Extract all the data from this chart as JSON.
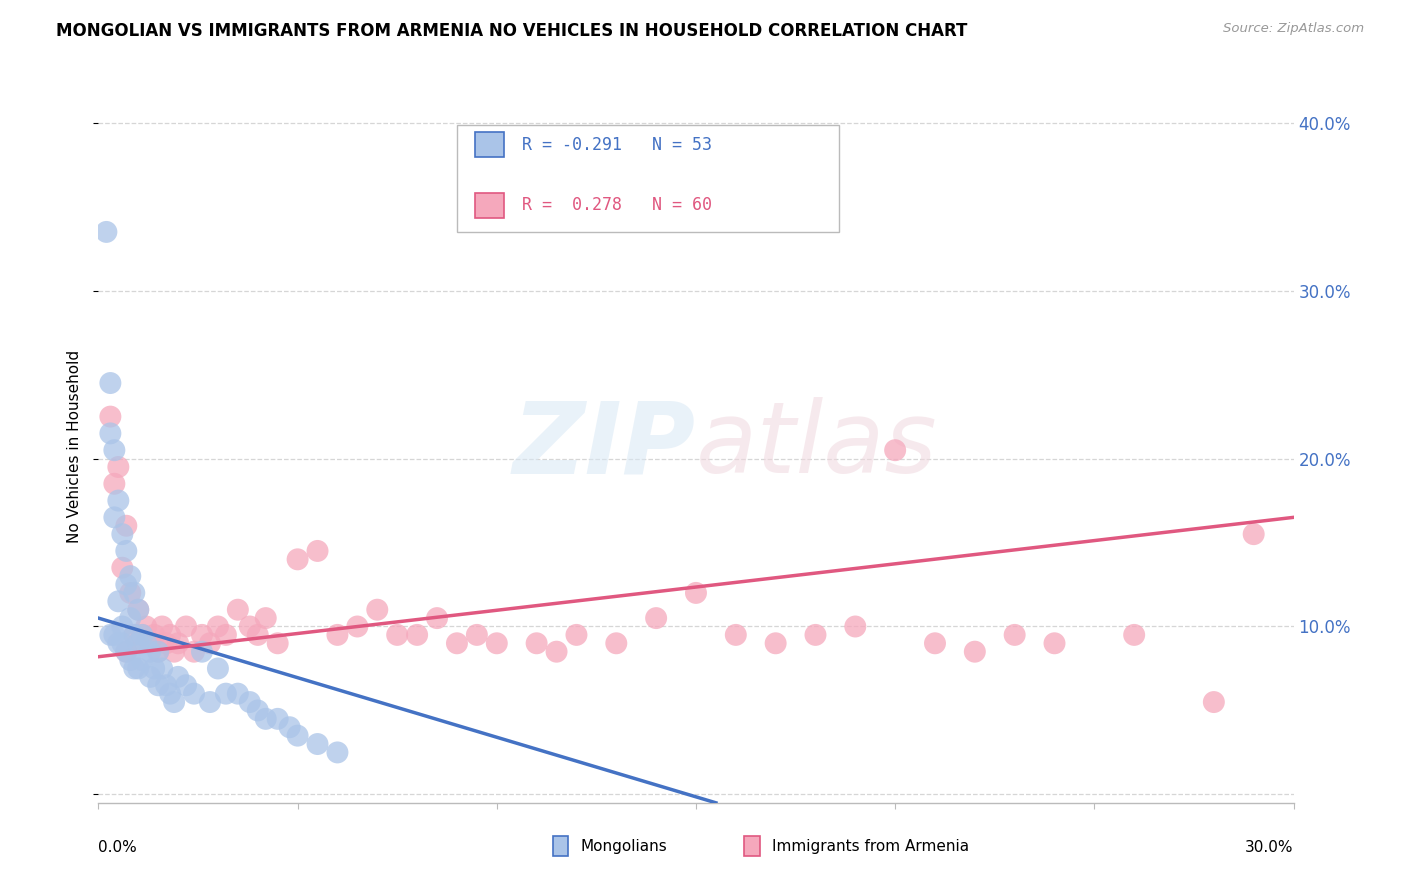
{
  "title": "MONGOLIAN VS IMMIGRANTS FROM ARMENIA NO VEHICLES IN HOUSEHOLD CORRELATION CHART",
  "source": "Source: ZipAtlas.com",
  "ylabel": "No Vehicles in Household",
  "mongolian_color": "#aac4e8",
  "armenia_color": "#f5a8bc",
  "mongolian_line_color": "#4472c4",
  "armenia_line_color": "#e05880",
  "xmin": 0.0,
  "xmax": 0.3,
  "ymin": -0.005,
  "ymax": 0.42,
  "yticks": [
    0.0,
    0.1,
    0.2,
    0.3,
    0.4
  ],
  "yticklabels": [
    "",
    "10.0%",
    "20.0%",
    "30.0%",
    "40.0%"
  ],
  "mongolian_line_x": [
    0.0,
    0.155
  ],
  "mongolian_line_y": [
    0.105,
    -0.005
  ],
  "armenia_line_x": [
    0.0,
    0.3
  ],
  "armenia_line_y": [
    0.082,
    0.165
  ],
  "mongolian_scatter_x": [
    0.002,
    0.003,
    0.003,
    0.003,
    0.004,
    0.004,
    0.004,
    0.005,
    0.005,
    0.005,
    0.006,
    0.006,
    0.006,
    0.007,
    0.007,
    0.007,
    0.008,
    0.008,
    0.008,
    0.009,
    0.009,
    0.009,
    0.01,
    0.01,
    0.01,
    0.011,
    0.011,
    0.012,
    0.013,
    0.013,
    0.014,
    0.015,
    0.015,
    0.016,
    0.017,
    0.018,
    0.019,
    0.02,
    0.022,
    0.024,
    0.026,
    0.028,
    0.03,
    0.032,
    0.035,
    0.038,
    0.04,
    0.042,
    0.045,
    0.048,
    0.05,
    0.055,
    0.06
  ],
  "mongolian_scatter_y": [
    0.335,
    0.245,
    0.215,
    0.095,
    0.205,
    0.165,
    0.095,
    0.175,
    0.115,
    0.09,
    0.155,
    0.1,
    0.09,
    0.145,
    0.125,
    0.085,
    0.13,
    0.105,
    0.08,
    0.12,
    0.095,
    0.075,
    0.11,
    0.09,
    0.075,
    0.095,
    0.08,
    0.09,
    0.085,
    0.07,
    0.075,
    0.085,
    0.065,
    0.075,
    0.065,
    0.06,
    0.055,
    0.07,
    0.065,
    0.06,
    0.085,
    0.055,
    0.075,
    0.06,
    0.06,
    0.055,
    0.05,
    0.045,
    0.045,
    0.04,
    0.035,
    0.03,
    0.025
  ],
  "armenia_scatter_x": [
    0.003,
    0.004,
    0.005,
    0.006,
    0.007,
    0.007,
    0.008,
    0.009,
    0.01,
    0.01,
    0.011,
    0.012,
    0.013,
    0.014,
    0.015,
    0.016,
    0.017,
    0.018,
    0.019,
    0.02,
    0.022,
    0.024,
    0.026,
    0.028,
    0.03,
    0.032,
    0.035,
    0.038,
    0.04,
    0.042,
    0.045,
    0.05,
    0.055,
    0.06,
    0.065,
    0.07,
    0.075,
    0.08,
    0.085,
    0.09,
    0.095,
    0.1,
    0.11,
    0.115,
    0.12,
    0.13,
    0.14,
    0.15,
    0.16,
    0.17,
    0.18,
    0.19,
    0.2,
    0.21,
    0.22,
    0.23,
    0.24,
    0.26,
    0.28,
    0.29
  ],
  "armenia_scatter_y": [
    0.225,
    0.185,
    0.195,
    0.135,
    0.16,
    0.085,
    0.12,
    0.095,
    0.11,
    0.09,
    0.095,
    0.1,
    0.09,
    0.095,
    0.085,
    0.1,
    0.09,
    0.095,
    0.085,
    0.09,
    0.1,
    0.085,
    0.095,
    0.09,
    0.1,
    0.095,
    0.11,
    0.1,
    0.095,
    0.105,
    0.09,
    0.14,
    0.145,
    0.095,
    0.1,
    0.11,
    0.095,
    0.095,
    0.105,
    0.09,
    0.095,
    0.09,
    0.09,
    0.085,
    0.095,
    0.09,
    0.105,
    0.12,
    0.095,
    0.09,
    0.095,
    0.1,
    0.205,
    0.09,
    0.085,
    0.095,
    0.09,
    0.095,
    0.055,
    0.155
  ]
}
